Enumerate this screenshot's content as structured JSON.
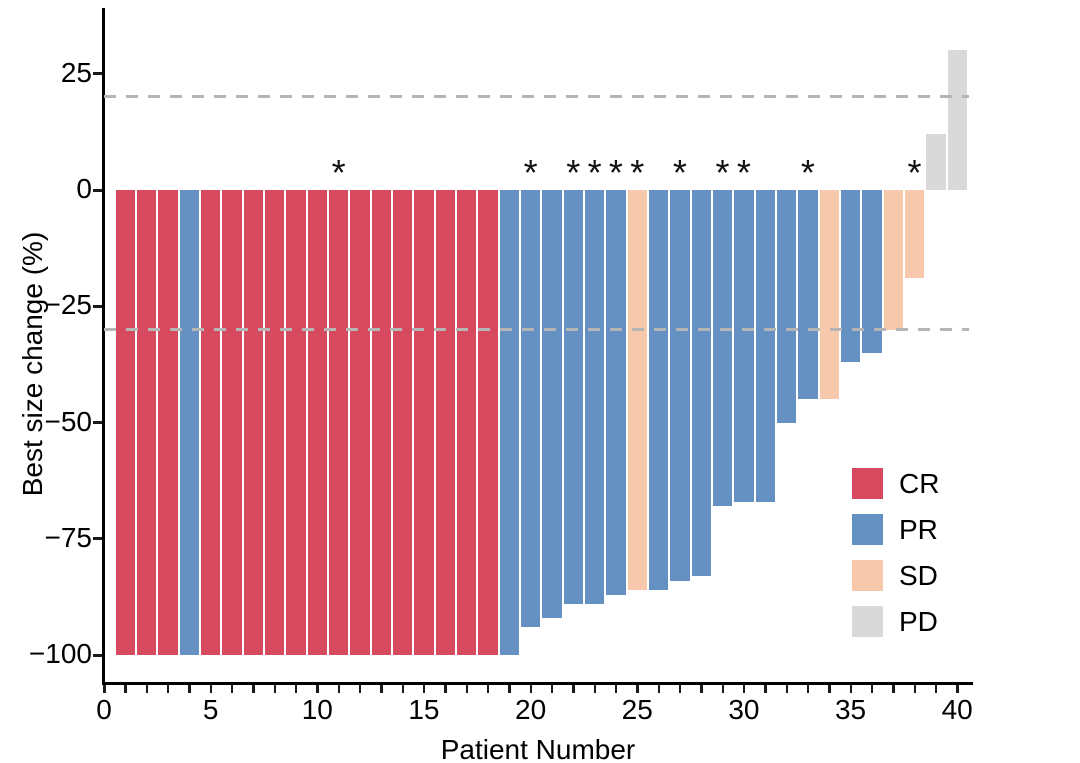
{
  "figure": {
    "background": "#ffffff"
  },
  "chart_data": {
    "type": "bar",
    "subtype": "waterfall",
    "title": "",
    "xlabel": "Patient Number",
    "ylabel": "Best size change (%)",
    "xlim": [
      0,
      40.7
    ],
    "ylim": [
      -106,
      37
    ],
    "grid": false,
    "legend_position": "lower-right",
    "annotation_symbol": "*",
    "x_ticks": [
      {
        "value": 0,
        "label": "0"
      },
      {
        "value": 5,
        "label": "5"
      },
      {
        "value": 10,
        "label": "10"
      },
      {
        "value": 15,
        "label": "15"
      },
      {
        "value": 20,
        "label": "20"
      },
      {
        "value": 25,
        "label": "25"
      },
      {
        "value": 30,
        "label": "30"
      },
      {
        "value": 35,
        "label": "35"
      },
      {
        "value": 40,
        "label": "40"
      }
    ],
    "y_ticks": [
      {
        "value": 25,
        "label": "25"
      },
      {
        "value": 0,
        "label": "0"
      },
      {
        "value": -25,
        "label": "−25"
      },
      {
        "value": -50,
        "label": "−50"
      },
      {
        "value": -75,
        "label": "−75"
      },
      {
        "value": -100,
        "label": "−100"
      }
    ],
    "reference_lines": [
      {
        "value": 20,
        "style": "dashed",
        "color": "#b5b5b5"
      },
      {
        "value": -30,
        "style": "dashed",
        "color": "#b5b5b5"
      }
    ],
    "colors": {
      "CR": "#d6495f",
      "PR": "#6590c2",
      "SD": "#f8c8ac",
      "PD": "#d9d9d9"
    },
    "legend_entries": [
      {
        "label": "CR",
        "color": "#d6495f"
      },
      {
        "label": "PR",
        "color": "#6590c2"
      },
      {
        "label": "SD",
        "color": "#f8c8ac"
      },
      {
        "label": "PD",
        "color": "#d9d9d9"
      }
    ],
    "patients": [
      {
        "n": 1,
        "value": -100,
        "response": "CR",
        "star": false
      },
      {
        "n": 2,
        "value": -100,
        "response": "CR",
        "star": false
      },
      {
        "n": 3,
        "value": -100,
        "response": "CR",
        "star": false
      },
      {
        "n": 4,
        "value": -100,
        "response": "PR",
        "star": false
      },
      {
        "n": 5,
        "value": -100,
        "response": "CR",
        "star": false
      },
      {
        "n": 6,
        "value": -100,
        "response": "CR",
        "star": false
      },
      {
        "n": 7,
        "value": -100,
        "response": "CR",
        "star": false
      },
      {
        "n": 8,
        "value": -100,
        "response": "CR",
        "star": false
      },
      {
        "n": 9,
        "value": -100,
        "response": "CR",
        "star": false
      },
      {
        "n": 10,
        "value": -100,
        "response": "CR",
        "star": false
      },
      {
        "n": 11,
        "value": -100,
        "response": "CR",
        "star": true
      },
      {
        "n": 12,
        "value": -100,
        "response": "CR",
        "star": false
      },
      {
        "n": 13,
        "value": -100,
        "response": "CR",
        "star": false
      },
      {
        "n": 14,
        "value": -100,
        "response": "CR",
        "star": false
      },
      {
        "n": 15,
        "value": -100,
        "response": "CR",
        "star": false
      },
      {
        "n": 16,
        "value": -100,
        "response": "CR",
        "star": false
      },
      {
        "n": 17,
        "value": -100,
        "response": "CR",
        "star": false
      },
      {
        "n": 18,
        "value": -100,
        "response": "CR",
        "star": false
      },
      {
        "n": 19,
        "value": -100,
        "response": "PR",
        "star": false
      },
      {
        "n": 20,
        "value": -94,
        "response": "PR",
        "star": true
      },
      {
        "n": 21,
        "value": -92,
        "response": "PR",
        "star": false
      },
      {
        "n": 22,
        "value": -89,
        "response": "PR",
        "star": true
      },
      {
        "n": 23,
        "value": -89,
        "response": "PR",
        "star": true
      },
      {
        "n": 24,
        "value": -87,
        "response": "PR",
        "star": true
      },
      {
        "n": 25,
        "value": -86,
        "response": "SD",
        "star": true
      },
      {
        "n": 26,
        "value": -86,
        "response": "PR",
        "star": false
      },
      {
        "n": 27,
        "value": -84,
        "response": "PR",
        "star": true
      },
      {
        "n": 28,
        "value": -83,
        "response": "PR",
        "star": false
      },
      {
        "n": 29,
        "value": -68,
        "response": "PR",
        "star": true
      },
      {
        "n": 30,
        "value": -67,
        "response": "PR",
        "star": true
      },
      {
        "n": 31,
        "value": -67,
        "response": "PR",
        "star": false
      },
      {
        "n": 32,
        "value": -50,
        "response": "PR",
        "star": false
      },
      {
        "n": 33,
        "value": -45,
        "response": "PR",
        "star": true
      },
      {
        "n": 34,
        "value": -45,
        "response": "SD",
        "star": false
      },
      {
        "n": 35,
        "value": -37,
        "response": "PR",
        "star": false
      },
      {
        "n": 36,
        "value": -35,
        "response": "PR",
        "star": false
      },
      {
        "n": 37,
        "value": -30,
        "response": "SD",
        "star": false
      },
      {
        "n": 38,
        "value": -19,
        "response": "SD",
        "star": true
      },
      {
        "n": 39,
        "value": 12,
        "response": "PD",
        "star": false
      },
      {
        "n": 40,
        "value": 30,
        "response": "PD",
        "star": false
      }
    ]
  }
}
